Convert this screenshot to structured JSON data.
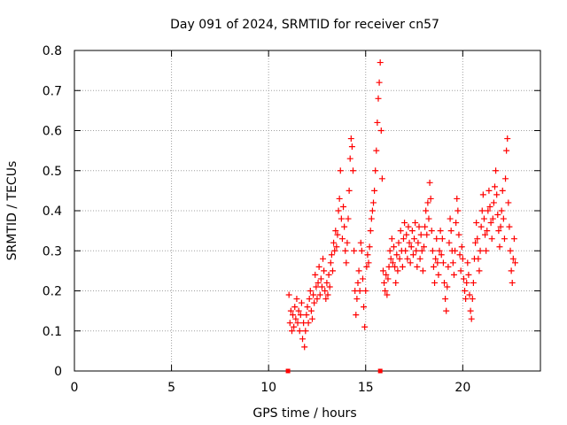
{
  "chart_data": {
    "type": "scatter",
    "title": "Day 091 of 2024, SRMTID for receiver cn57",
    "xlabel": "GPS time / hours",
    "ylabel": "SRMTID / TECUs",
    "xlim": [
      0,
      24
    ],
    "ylim": [
      0,
      0.8
    ],
    "x_ticks": [
      0,
      5,
      10,
      15,
      20
    ],
    "x_tick_labels": [
      "0",
      "5",
      "10",
      "15",
      "20"
    ],
    "y_ticks": [
      0,
      0.1,
      0.2,
      0.3,
      0.4,
      0.5,
      0.6,
      0.7,
      0.8
    ],
    "y_tick_labels": [
      "0",
      "0.1",
      "0.2",
      "0.3",
      "0.4",
      "0.5",
      "0.6",
      "0.7",
      "0.8"
    ],
    "grid": true,
    "marker": "+",
    "color": "#ff0000",
    "baseline_markers_x": [
      11.0,
      15.75
    ],
    "series": [
      {
        "name": "SRMTID",
        "points": [
          [
            11.05,
            0.19
          ],
          [
            11.1,
            0.12
          ],
          [
            11.15,
            0.15
          ],
          [
            11.2,
            0.1
          ],
          [
            11.25,
            0.14
          ],
          [
            11.3,
            0.11
          ],
          [
            11.35,
            0.16
          ],
          [
            11.4,
            0.13
          ],
          [
            11.45,
            0.18
          ],
          [
            11.5,
            0.12
          ],
          [
            11.55,
            0.15
          ],
          [
            11.6,
            0.1
          ],
          [
            11.65,
            0.14
          ],
          [
            11.7,
            0.17
          ],
          [
            11.75,
            0.08
          ],
          [
            11.8,
            0.12
          ],
          [
            11.85,
            0.06
          ],
          [
            11.9,
            0.1
          ],
          [
            11.95,
            0.14
          ],
          [
            12.0,
            0.16
          ],
          [
            12.05,
            0.12
          ],
          [
            12.1,
            0.18
          ],
          [
            12.15,
            0.2
          ],
          [
            12.2,
            0.15
          ],
          [
            12.25,
            0.13
          ],
          [
            12.3,
            0.19
          ],
          [
            12.35,
            0.17
          ],
          [
            12.4,
            0.24
          ],
          [
            12.45,
            0.21
          ],
          [
            12.5,
            0.18
          ],
          [
            12.55,
            0.22
          ],
          [
            12.6,
            0.26
          ],
          [
            12.65,
            0.19
          ],
          [
            12.7,
            0.23
          ],
          [
            12.75,
            0.21
          ],
          [
            12.8,
            0.28
          ],
          [
            12.85,
            0.25
          ],
          [
            12.9,
            0.2
          ],
          [
            12.95,
            0.18
          ],
          [
            13.0,
            0.22
          ],
          [
            13.05,
            0.19
          ],
          [
            13.1,
            0.24
          ],
          [
            13.15,
            0.21
          ],
          [
            13.2,
            0.27
          ],
          [
            13.25,
            0.29
          ],
          [
            13.3,
            0.25
          ],
          [
            13.35,
            0.32
          ],
          [
            13.4,
            0.3
          ],
          [
            13.45,
            0.35
          ],
          [
            13.5,
            0.31
          ],
          [
            13.55,
            0.34
          ],
          [
            13.6,
            0.4
          ],
          [
            13.65,
            0.43
          ],
          [
            13.7,
            0.5
          ],
          [
            13.75,
            0.38
          ],
          [
            13.8,
            0.33
          ],
          [
            13.85,
            0.41
          ],
          [
            13.9,
            0.36
          ],
          [
            13.95,
            0.3
          ],
          [
            14.0,
            0.27
          ],
          [
            14.05,
            0.32
          ],
          [
            14.1,
            0.38
          ],
          [
            14.15,
            0.45
          ],
          [
            14.2,
            0.53
          ],
          [
            14.25,
            0.58
          ],
          [
            14.3,
            0.56
          ],
          [
            14.35,
            0.5
          ],
          [
            14.4,
            0.3
          ],
          [
            14.45,
            0.2
          ],
          [
            14.5,
            0.14
          ],
          [
            14.55,
            0.18
          ],
          [
            14.6,
            0.22
          ],
          [
            14.65,
            0.25
          ],
          [
            14.7,
            0.2
          ],
          [
            14.75,
            0.32
          ],
          [
            14.8,
            0.3
          ],
          [
            14.85,
            0.23
          ],
          [
            14.9,
            0.16
          ],
          [
            14.95,
            0.11
          ],
          [
            15.0,
            0.2
          ],
          [
            15.05,
            0.26
          ],
          [
            15.1,
            0.29
          ],
          [
            15.15,
            0.27
          ],
          [
            15.2,
            0.31
          ],
          [
            15.25,
            0.35
          ],
          [
            15.3,
            0.38
          ],
          [
            15.35,
            0.4
          ],
          [
            15.4,
            0.42
          ],
          [
            15.45,
            0.45
          ],
          [
            15.5,
            0.5
          ],
          [
            15.55,
            0.55
          ],
          [
            15.6,
            0.62
          ],
          [
            15.65,
            0.68
          ],
          [
            15.7,
            0.72
          ],
          [
            15.75,
            0.77
          ],
          [
            15.8,
            0.6
          ],
          [
            15.85,
            0.48
          ],
          [
            15.9,
            0.25
          ],
          [
            15.95,
            0.22
          ],
          [
            16.0,
            0.2
          ],
          [
            16.05,
            0.24
          ],
          [
            16.1,
            0.19
          ],
          [
            16.15,
            0.23
          ],
          [
            16.2,
            0.26
          ],
          [
            16.25,
            0.3
          ],
          [
            16.3,
            0.28
          ],
          [
            16.35,
            0.33
          ],
          [
            16.4,
            0.27
          ],
          [
            16.45,
            0.31
          ],
          [
            16.5,
            0.26
          ],
          [
            16.55,
            0.22
          ],
          [
            16.6,
            0.29
          ],
          [
            16.65,
            0.25
          ],
          [
            16.7,
            0.32
          ],
          [
            16.75,
            0.28
          ],
          [
            16.8,
            0.35
          ],
          [
            16.85,
            0.3
          ],
          [
            16.9,
            0.26
          ],
          [
            16.95,
            0.33
          ],
          [
            17.0,
            0.37
          ],
          [
            17.05,
            0.3
          ],
          [
            17.1,
            0.34
          ],
          [
            17.15,
            0.28
          ],
          [
            17.2,
            0.36
          ],
          [
            17.25,
            0.32
          ],
          [
            17.3,
            0.27
          ],
          [
            17.35,
            0.31
          ],
          [
            17.4,
            0.35
          ],
          [
            17.45,
            0.29
          ],
          [
            17.5,
            0.33
          ],
          [
            17.55,
            0.37
          ],
          [
            17.6,
            0.3
          ],
          [
            17.65,
            0.26
          ],
          [
            17.7,
            0.32
          ],
          [
            17.75,
            0.36
          ],
          [
            17.8,
            0.28
          ],
          [
            17.85,
            0.34
          ],
          [
            17.9,
            0.3
          ],
          [
            17.95,
            0.25
          ],
          [
            18.0,
            0.31
          ],
          [
            18.05,
            0.36
          ],
          [
            18.1,
            0.4
          ],
          [
            18.15,
            0.34
          ],
          [
            18.2,
            0.42
          ],
          [
            18.25,
            0.38
          ],
          [
            18.3,
            0.47
          ],
          [
            18.35,
            0.43
          ],
          [
            18.4,
            0.35
          ],
          [
            18.45,
            0.3
          ],
          [
            18.5,
            0.26
          ],
          [
            18.55,
            0.22
          ],
          [
            18.6,
            0.28
          ],
          [
            18.65,
            0.33
          ],
          [
            18.7,
            0.27
          ],
          [
            18.75,
            0.24
          ],
          [
            18.8,
            0.3
          ],
          [
            18.85,
            0.35
          ],
          [
            18.9,
            0.29
          ],
          [
            18.95,
            0.33
          ],
          [
            19.0,
            0.27
          ],
          [
            19.05,
            0.22
          ],
          [
            19.1,
            0.18
          ],
          [
            19.15,
            0.15
          ],
          [
            19.2,
            0.21
          ],
          [
            19.25,
            0.26
          ],
          [
            19.3,
            0.32
          ],
          [
            19.35,
            0.38
          ],
          [
            19.4,
            0.35
          ],
          [
            19.45,
            0.3
          ],
          [
            19.5,
            0.27
          ],
          [
            19.55,
            0.24
          ],
          [
            19.6,
            0.3
          ],
          [
            19.65,
            0.37
          ],
          [
            19.7,
            0.43
          ],
          [
            19.75,
            0.4
          ],
          [
            19.8,
            0.34
          ],
          [
            19.85,
            0.29
          ],
          [
            19.9,
            0.25
          ],
          [
            19.95,
            0.31
          ],
          [
            20.0,
            0.28
          ],
          [
            20.05,
            0.23
          ],
          [
            20.1,
            0.2
          ],
          [
            20.15,
            0.18
          ],
          [
            20.2,
            0.22
          ],
          [
            20.25,
            0.27
          ],
          [
            20.3,
            0.24
          ],
          [
            20.35,
            0.19
          ],
          [
            20.4,
            0.15
          ],
          [
            20.45,
            0.13
          ],
          [
            20.5,
            0.18
          ],
          [
            20.55,
            0.22
          ],
          [
            20.6,
            0.28
          ],
          [
            20.65,
            0.32
          ],
          [
            20.7,
            0.37
          ],
          [
            20.75,
            0.33
          ],
          [
            20.8,
            0.28
          ],
          [
            20.85,
            0.25
          ],
          [
            20.9,
            0.3
          ],
          [
            20.95,
            0.36
          ],
          [
            21.0,
            0.4
          ],
          [
            21.05,
            0.44
          ],
          [
            21.1,
            0.38
          ],
          [
            21.15,
            0.34
          ],
          [
            21.2,
            0.3
          ],
          [
            21.25,
            0.35
          ],
          [
            21.3,
            0.4
          ],
          [
            21.35,
            0.45
          ],
          [
            21.4,
            0.41
          ],
          [
            21.45,
            0.37
          ],
          [
            21.5,
            0.33
          ],
          [
            21.55,
            0.38
          ],
          [
            21.6,
            0.42
          ],
          [
            21.65,
            0.46
          ],
          [
            21.7,
            0.5
          ],
          [
            21.75,
            0.44
          ],
          [
            21.8,
            0.39
          ],
          [
            21.85,
            0.35
          ],
          [
            21.9,
            0.31
          ],
          [
            21.95,
            0.36
          ],
          [
            22.0,
            0.4
          ],
          [
            22.05,
            0.45
          ],
          [
            22.1,
            0.38
          ],
          [
            22.15,
            0.33
          ],
          [
            22.2,
            0.48
          ],
          [
            22.25,
            0.55
          ],
          [
            22.3,
            0.58
          ],
          [
            22.35,
            0.42
          ],
          [
            22.4,
            0.36
          ],
          [
            22.45,
            0.3
          ],
          [
            22.5,
            0.25
          ],
          [
            22.55,
            0.22
          ],
          [
            22.6,
            0.28
          ],
          [
            22.65,
            0.33
          ],
          [
            22.7,
            0.27
          ]
        ]
      }
    ]
  }
}
